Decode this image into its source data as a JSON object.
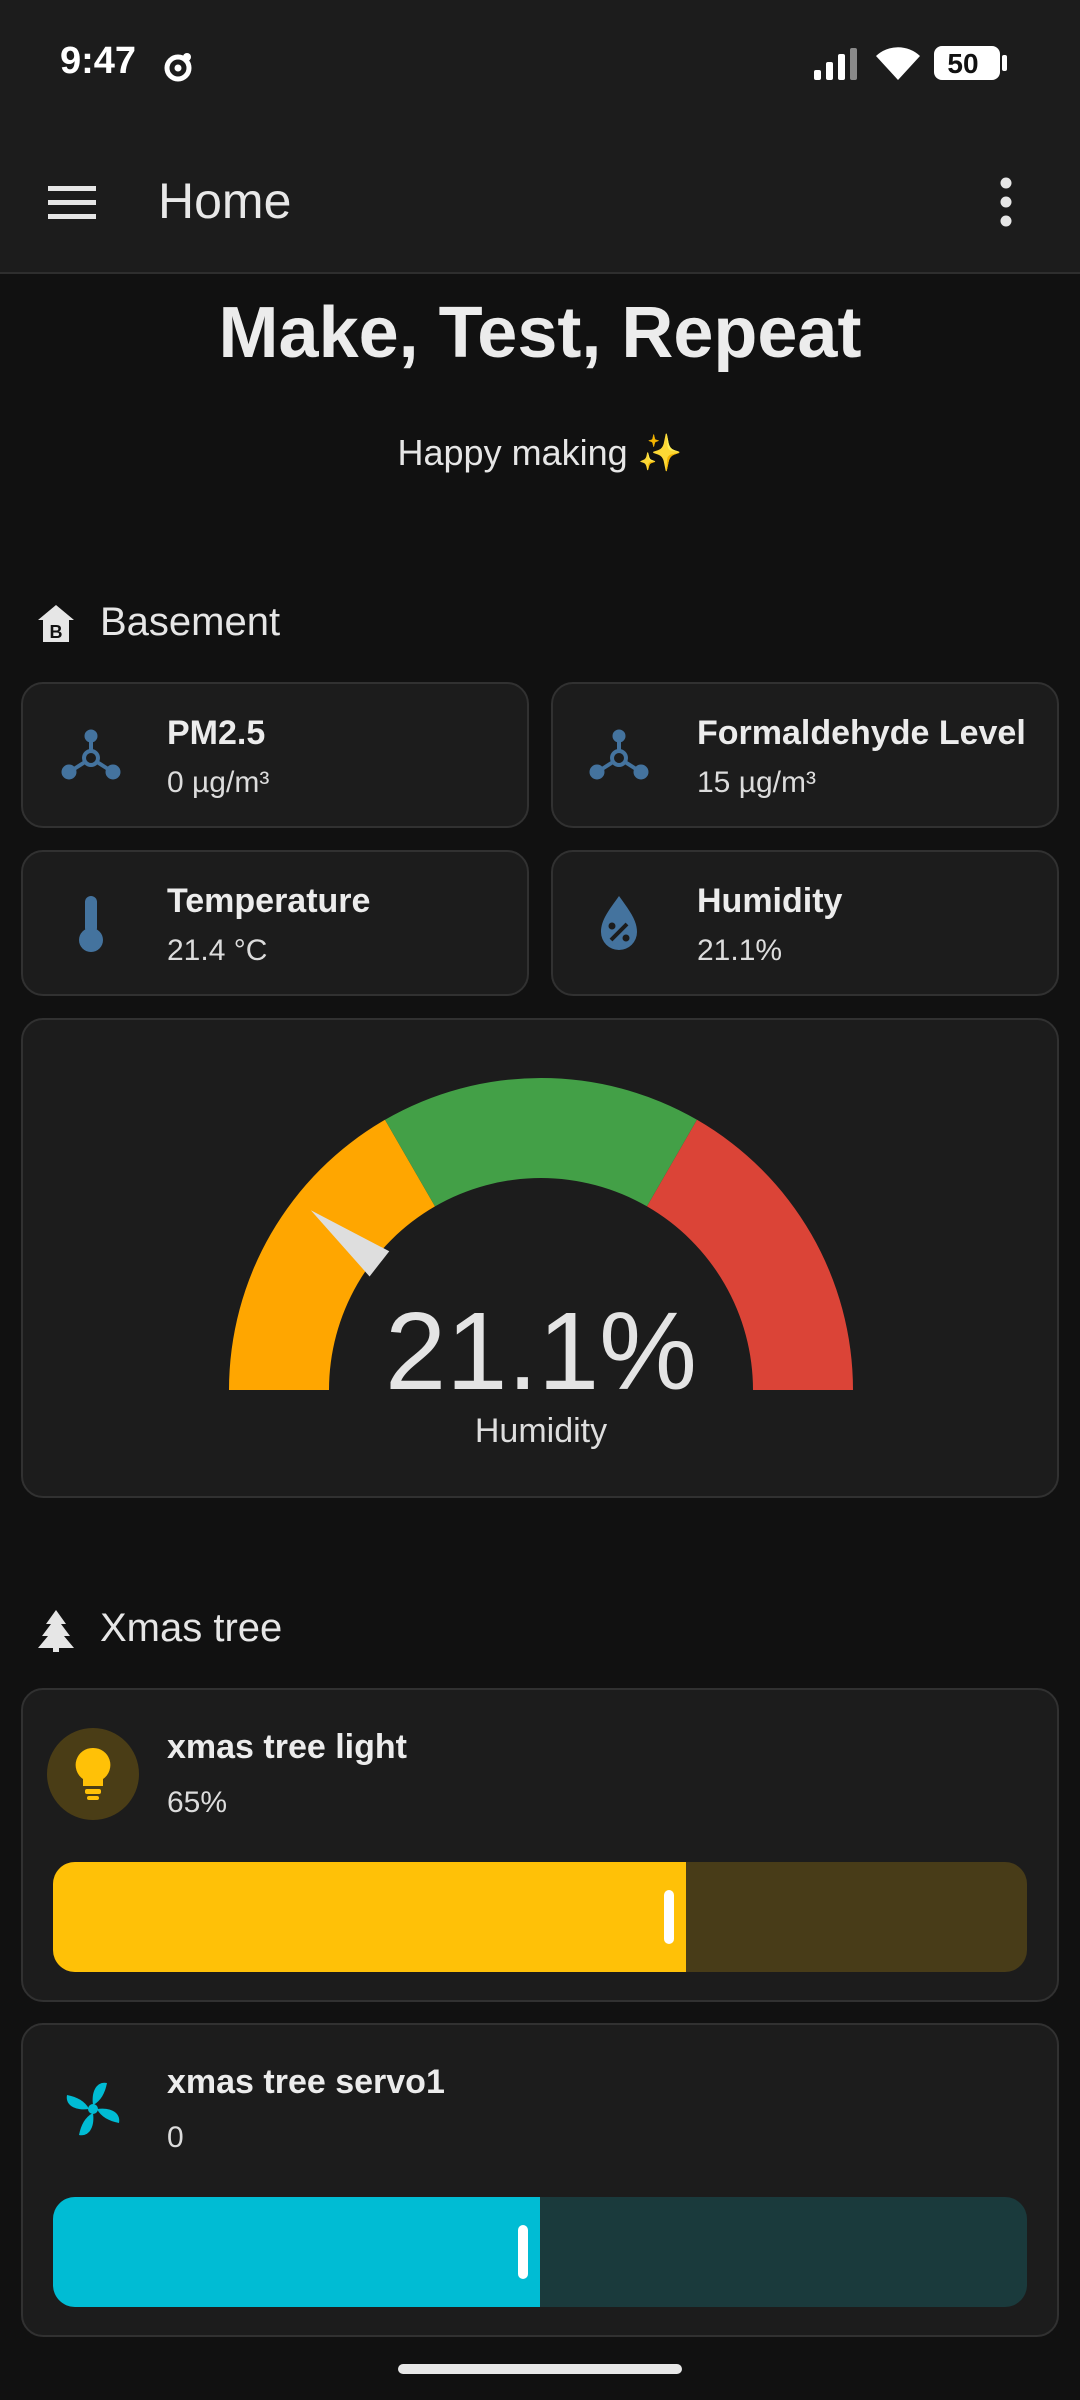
{
  "status_bar": {
    "time": "9:47",
    "battery": "50"
  },
  "app_bar": {
    "title": "Home"
  },
  "hero": {
    "title": "Make, Test, Repeat",
    "subtitle": "Happy making ✨"
  },
  "sections": {
    "basement": {
      "title": "Basement",
      "tiles": [
        {
          "name": "PM2.5",
          "state": "0 µg/m³",
          "icon": "molecule-icon"
        },
        {
          "name": "Formaldehyde Level",
          "state": "15 µg/m³",
          "icon": "molecule-icon"
        },
        {
          "name": "Temperature",
          "state": "21.4 °C",
          "icon": "thermometer-icon"
        },
        {
          "name": "Humidity",
          "state": "21.1%",
          "icon": "water-percent-icon"
        }
      ],
      "gauge": {
        "value": 21.1,
        "value_text": "21.1%",
        "label": "Humidity",
        "min": 0,
        "max": 100
      }
    },
    "xmas": {
      "title": "Xmas tree",
      "light": {
        "name": "xmas tree light",
        "state": "65%",
        "level": 65
      },
      "servo": {
        "name": "xmas tree servo1",
        "state": "0",
        "level_fraction": 0.5
      }
    }
  },
  "colors": {
    "background": "#111111",
    "card": "#1c1c1c",
    "icon_blue": "#44739e",
    "gauge_orange": "#ffa600",
    "gauge_green": "#43a047",
    "gauge_red": "#db4437",
    "light_fill": "#ffc107",
    "light_track": "#483c18",
    "servo_fill": "#00bcd4",
    "servo_track": "#1a3a3c"
  }
}
